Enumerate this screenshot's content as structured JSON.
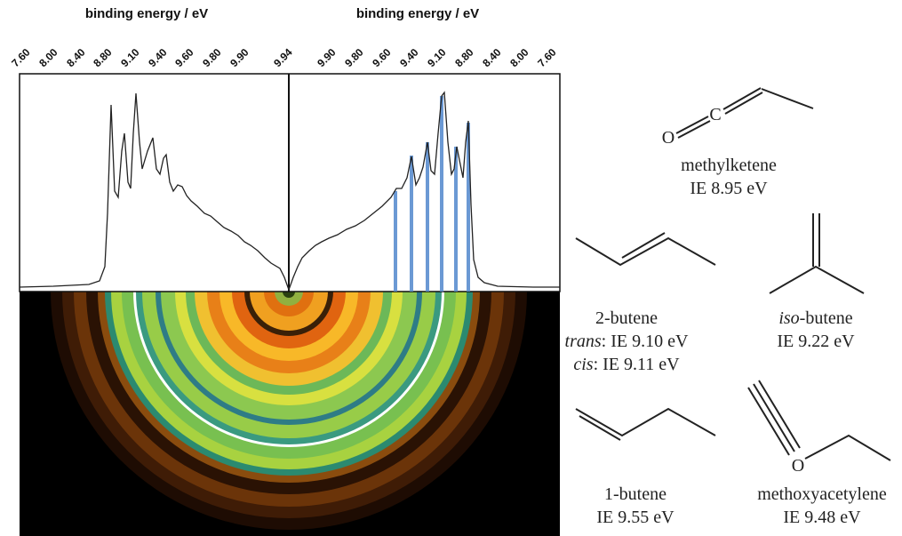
{
  "top_axis": {
    "left_title": "binding energy / eV",
    "right_title": "binding energy / eV",
    "left_ticks": [
      "7.60",
      "8.00",
      "8.40",
      "8.80",
      "9.10",
      "9.40",
      "9.60",
      "9.80",
      "9.90"
    ],
    "center_tick": "9.94",
    "right_ticks": [
      "9.90",
      "9.80",
      "9.60",
      "9.40",
      "9.10",
      "8.80",
      "8.40",
      "8.00",
      "7.60"
    ]
  },
  "atoms": {
    "oxygen": "O",
    "carbon": "C"
  },
  "molecules": {
    "methylketene": {
      "name": "methylketene",
      "ie": "IE 8.95 eV"
    },
    "butene2": {
      "name": "2-butene",
      "trans_italic": "trans",
      "trans_ie": ": IE 9.10 eV",
      "cis_italic": "cis",
      "cis_ie": ": IE 9.11 eV"
    },
    "isobutene": {
      "name_italic": "iso",
      "name_rest": "-butene",
      "ie": "IE 9.22 eV"
    },
    "butene1": {
      "name": "1-butene",
      "ie": "IE 9.55 eV"
    },
    "methoxyacetylene": {
      "name": "methoxyacetylene",
      "ie": "IE 9.48 eV"
    }
  }
}
